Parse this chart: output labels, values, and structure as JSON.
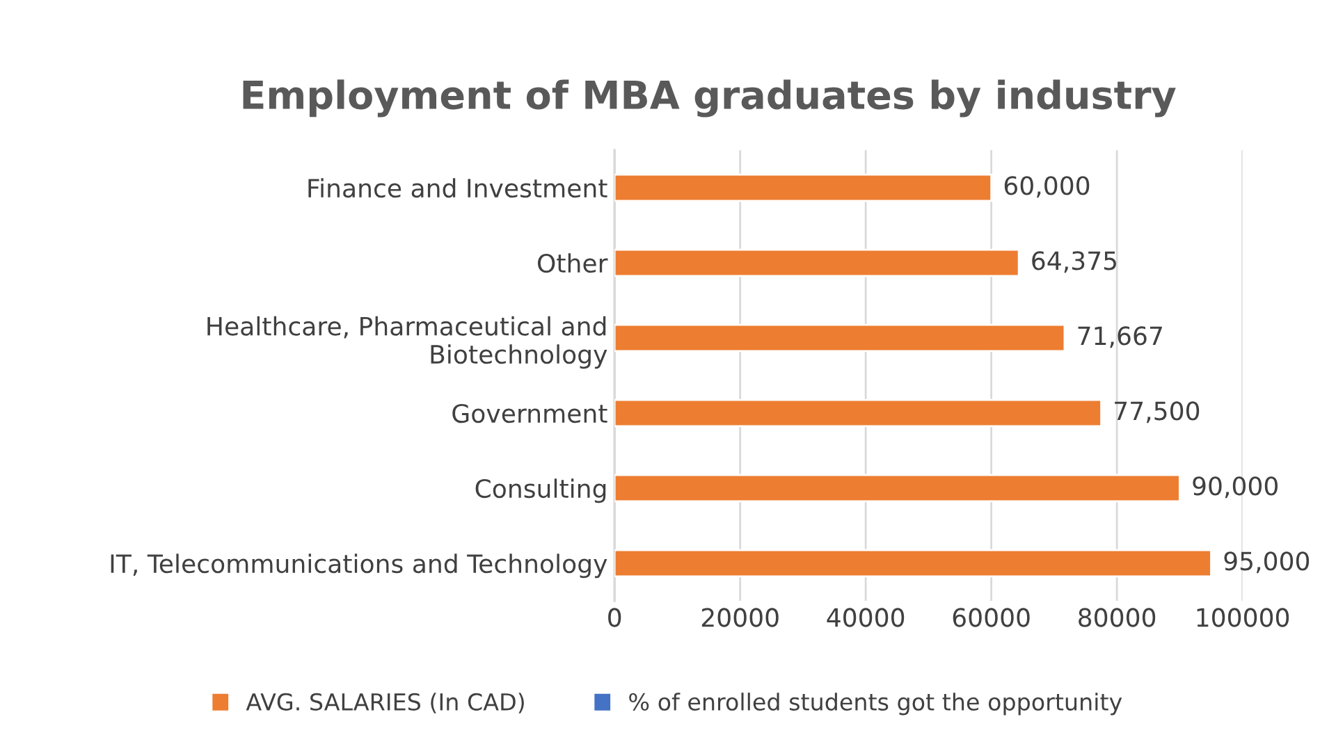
{
  "chart_data": {
    "type": "bar",
    "orientation": "horizontal",
    "title": "Employment of MBA graduates by industry",
    "categories": [
      "Finance and Investment",
      "Other",
      "Healthcare, Pharmaceutical and\nBiotechnology",
      "Government",
      "Consulting",
      "IT, Telecommunications and Technology"
    ],
    "series": [
      {
        "name": "AVG. SALARIES (In CAD)",
        "color": "#ed7d31",
        "values": [
          60000,
          64375,
          71667,
          77500,
          90000,
          95000
        ],
        "value_labels": [
          "60,000",
          "64,375",
          "71,667",
          "77,500",
          "90,000",
          "95,000"
        ]
      },
      {
        "name": "% of enrolled students got the opportunity",
        "color": "#4472c4",
        "values": [
          null,
          null,
          null,
          null,
          null,
          null
        ]
      }
    ],
    "xlim": [
      0,
      100000
    ],
    "xticks": [
      0,
      20000,
      40000,
      60000,
      80000,
      100000
    ],
    "grid": "x",
    "legend": "bottom"
  }
}
